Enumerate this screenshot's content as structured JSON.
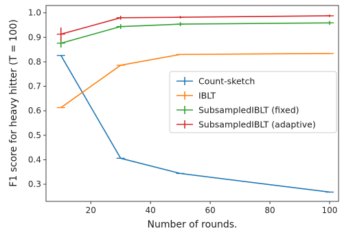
{
  "chart_data": {
    "type": "line",
    "title": "",
    "xlabel": "Number of rounds.",
    "ylabel": "F1 score for heavy hitter (T = 100)",
    "x": [
      10,
      30,
      50,
      100
    ],
    "xlim": [
      5,
      103
    ],
    "ylim": [
      0.23,
      1.03
    ],
    "xticks": [
      20,
      40,
      60,
      80,
      100
    ],
    "yticks": [
      0.3,
      0.4,
      0.5,
      0.6,
      0.7,
      0.8,
      0.9,
      1.0
    ],
    "ytick_labels": [
      "0.3",
      "0.4",
      "0.5",
      "0.6",
      "0.7",
      "0.8",
      "0.9",
      "1.0"
    ],
    "grid": false,
    "legend_position": "center-right",
    "series": [
      {
        "name": "Count-sketch",
        "color": "#1f77b4",
        "values": [
          0.826,
          0.406,
          0.344,
          0.268
        ],
        "errors": [
          0,
          0,
          0,
          0
        ]
      },
      {
        "name": "IBLT",
        "color": "#ff7f0e",
        "values": [
          0.613,
          0.786,
          0.83,
          0.834
        ],
        "errors": [
          0,
          0,
          0,
          0
        ]
      },
      {
        "name": "SubsampledIBLT (fixed)",
        "color": "#2ca02c",
        "values": [
          0.876,
          0.944,
          0.954,
          0.959
        ],
        "errors": [
          0.018,
          0.01,
          0.008,
          0.008
        ]
      },
      {
        "name": "SubsampledIBLT (adaptive)",
        "color": "#d62728",
        "values": [
          0.913,
          0.98,
          0.982,
          0.988
        ],
        "errors": [
          0.027,
          0.008,
          0.005,
          0.005
        ]
      }
    ]
  }
}
